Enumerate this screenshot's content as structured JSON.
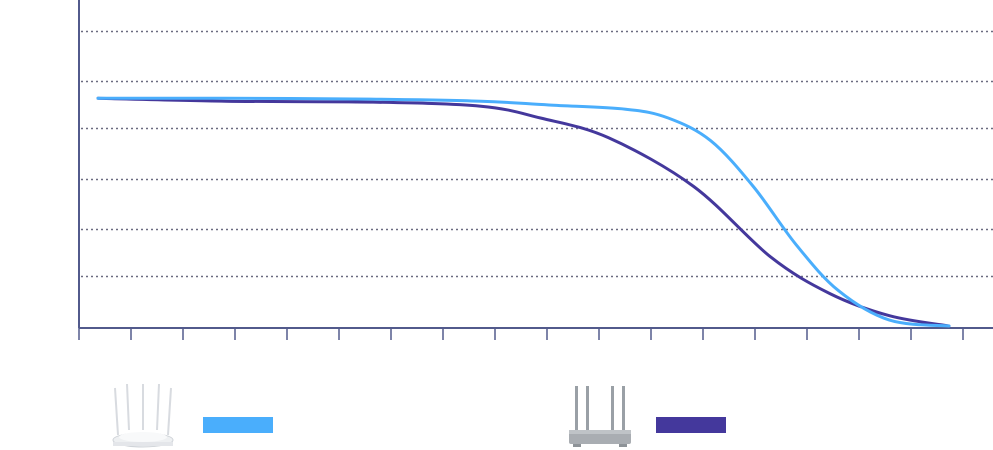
{
  "chart_data": {
    "type": "line",
    "title": "",
    "xlabel": "",
    "ylabel": "",
    "x_tick_count": 17,
    "ylim": [
      0,
      100
    ],
    "y_gridlines": [
      17,
      33,
      50,
      67,
      83,
      100
    ],
    "grid": true,
    "legend_position": "bottom",
    "series": [
      {
        "name": "",
        "color": "#4aaefc",
        "icon": "white-router-with-six-antennas-icon",
        "values": [
          {
            "x": 0.0,
            "y": 77.2
          },
          {
            "x": 0.15,
            "y": 77.2
          },
          {
            "x": 0.32,
            "y": 76.9
          },
          {
            "x": 0.45,
            "y": 76.2
          },
          {
            "x": 0.53,
            "y": 74.9
          },
          {
            "x": 0.62,
            "y": 73.5
          },
          {
            "x": 0.67,
            "y": 70.5
          },
          {
            "x": 0.72,
            "y": 62.8
          },
          {
            "x": 0.77,
            "y": 47.3
          },
          {
            "x": 0.82,
            "y": 27.7
          },
          {
            "x": 0.87,
            "y": 12.0
          },
          {
            "x": 0.93,
            "y": 2.0
          },
          {
            "x": 1.0,
            "y": 0.0
          }
        ]
      },
      {
        "name": "",
        "color": "#44389c",
        "icon": "grey-router-with-four-antennas-icon",
        "values": [
          {
            "x": 0.0,
            "y": 77.2
          },
          {
            "x": 0.15,
            "y": 76.2
          },
          {
            "x": 0.32,
            "y": 75.9
          },
          {
            "x": 0.45,
            "y": 74.5
          },
          {
            "x": 0.52,
            "y": 70.5
          },
          {
            "x": 0.6,
            "y": 63.8
          },
          {
            "x": 0.7,
            "y": 47.3
          },
          {
            "x": 0.79,
            "y": 23.5
          },
          {
            "x": 0.86,
            "y": 11.0
          },
          {
            "x": 0.93,
            "y": 3.5
          },
          {
            "x": 1.0,
            "y": 0.0
          }
        ]
      }
    ]
  },
  "colors": {
    "axis": "#525a8c",
    "grid": "#6b6b80"
  }
}
